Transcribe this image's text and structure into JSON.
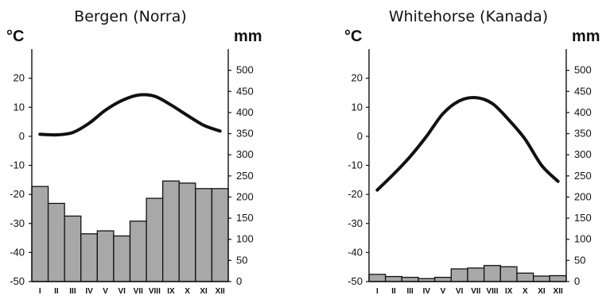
{
  "chart_data": [
    {
      "type": "bar+line",
      "title": "Bergen (Norra)",
      "left_unit": "°C",
      "right_unit": "mm",
      "categories": [
        "I",
        "II",
        "III",
        "IV",
        "V",
        "VI",
        "VII",
        "VIII",
        "IX",
        "X",
        "XI",
        "XII"
      ],
      "temperature_axis": {
        "ylim": [
          -50,
          30
        ],
        "ticks": [
          {
            "value": 20,
            "label": "20"
          },
          {
            "value": 10,
            "label": "10"
          },
          {
            "value": 0,
            "label": "0"
          },
          {
            "value": -10,
            "label": "-10"
          },
          {
            "value": -20,
            "label": "-20"
          },
          {
            "value": -30,
            "label": "-30"
          },
          {
            "value": -40,
            "label": "-40"
          },
          {
            "value": -50,
            "label": "-50"
          }
        ]
      },
      "precipitation_axis": {
        "ylim": [
          0,
          550
        ],
        "ticks": [
          {
            "value": 500,
            "label": "500"
          },
          {
            "value": 450,
            "label": "450"
          },
          {
            "value": 400,
            "label": "400"
          },
          {
            "value": 350,
            "label": "350"
          },
          {
            "value": 300,
            "label": "300"
          },
          {
            "value": 250,
            "label": "250"
          },
          {
            "value": 200,
            "label": "200"
          },
          {
            "value": 150,
            "label": "150"
          },
          {
            "value": 100,
            "label": "100"
          },
          {
            "value": 50,
            "label": "50"
          },
          {
            "value": 0,
            "label": "0"
          }
        ]
      },
      "temperature": [
        0.7,
        0.5,
        1.3,
        4.5,
        9.0,
        12.3,
        14.2,
        13.8,
        10.8,
        7.2,
        3.8,
        1.8
      ],
      "precipitation": [
        225,
        185,
        155,
        113,
        120,
        108,
        143,
        197,
        238,
        233,
        220,
        220
      ],
      "colors": {
        "bar": "#a8a8a8",
        "line": "#111111",
        "axis": "#111111"
      },
      "grid": false
    },
    {
      "type": "bar+line",
      "title": "Whitehorse (Kanada)",
      "left_unit": "°C",
      "right_unit": "mm",
      "categories": [
        "I",
        "II",
        "III",
        "IV",
        "V",
        "VI",
        "VII",
        "VIII",
        "IX",
        "X",
        "XI",
        "XII"
      ],
      "temperature_axis": {
        "ylim": [
          -50,
          30
        ],
        "ticks": [
          {
            "value": 20,
            "label": "20"
          },
          {
            "value": 10,
            "label": "10"
          },
          {
            "value": 0,
            "label": "0"
          },
          {
            "value": -10,
            "label": "-10"
          },
          {
            "value": -20,
            "label": "-20"
          },
          {
            "value": -30,
            "label": "-30"
          },
          {
            "value": -40,
            "label": "-40"
          },
          {
            "value": -50,
            "label": "-50"
          }
        ]
      },
      "precipitation_axis": {
        "ylim": [
          0,
          550
        ],
        "ticks": [
          {
            "value": 500,
            "label": "500"
          },
          {
            "value": 450,
            "label": "450"
          },
          {
            "value": 400,
            "label": "400"
          },
          {
            "value": 350,
            "label": "350"
          },
          {
            "value": 300,
            "label": "300"
          },
          {
            "value": 250,
            "label": "250"
          },
          {
            "value": 200,
            "label": "200"
          },
          {
            "value": 150,
            "label": "150"
          },
          {
            "value": 100,
            "label": "100"
          },
          {
            "value": 50,
            "label": "50"
          },
          {
            "value": 0,
            "label": "0"
          }
        ]
      },
      "temperature": [
        -18.5,
        -13.0,
        -7.0,
        0.0,
        7.8,
        12.2,
        13.3,
        11.3,
        5.7,
        -1.0,
        -10.0,
        -15.5
      ],
      "precipitation": [
        17,
        12,
        10,
        7,
        10,
        30,
        32,
        38,
        35,
        20,
        13,
        14
      ],
      "colors": {
        "bar": "#a8a8a8",
        "line": "#111111",
        "axis": "#111111"
      },
      "grid": false
    }
  ]
}
